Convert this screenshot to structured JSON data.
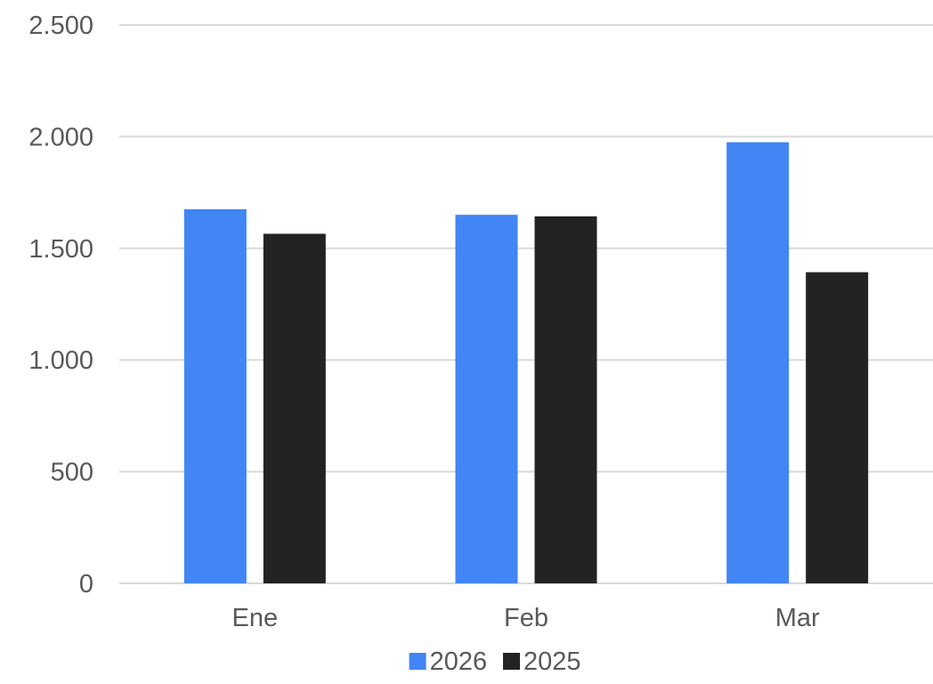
{
  "chart_data": {
    "type": "bar",
    "title": "",
    "xlabel": "",
    "ylabel": "",
    "categories": [
      "Ene",
      "Feb",
      "Mar"
    ],
    "series": [
      {
        "name": "2026",
        "values": [
          1675,
          1650,
          1975
        ],
        "color": "#4285F4"
      },
      {
        "name": "2025",
        "values": [
          1565,
          1643,
          1393
        ],
        "color": "#232323"
      }
    ],
    "ylim": [
      0,
      2500
    ],
    "yticks": [
      0,
      500,
      1000,
      1500,
      2000,
      2500
    ],
    "ytick_labels": [
      "0",
      "500",
      "1.000",
      "1.500",
      "2.000",
      "2.500"
    ],
    "grid": true,
    "gridline_color": "#D9D9D9",
    "legend_position": "bottom"
  }
}
